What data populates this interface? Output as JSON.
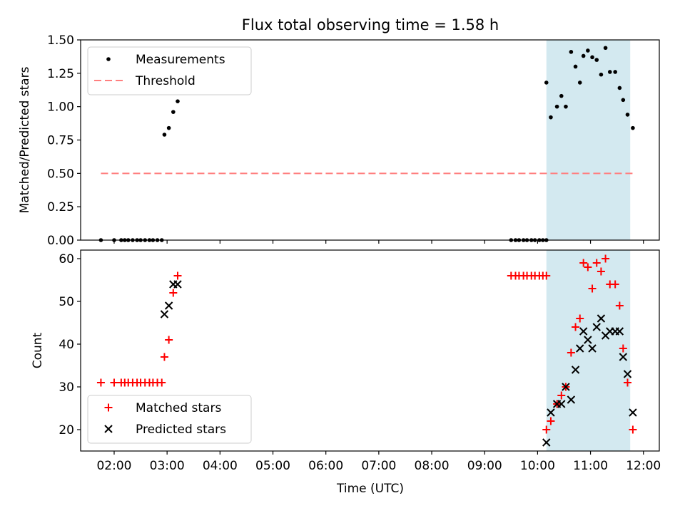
{
  "figure": {
    "title": "Flux total observing time = 1.58 h",
    "xlabel": "Time (UTC)"
  },
  "chart_data": [
    {
      "type": "scatter",
      "ylabel": "Matched/Predicted stars",
      "ylim": [
        0,
        1.5
      ],
      "yticks": [
        "0.00",
        "0.25",
        "0.50",
        "0.75",
        "1.00",
        "1.25",
        "1.50"
      ],
      "xlim": [
        "01:22",
        "12:18"
      ],
      "xticks": [
        "02:00",
        "03:00",
        "04:00",
        "05:00",
        "06:00",
        "07:00",
        "08:00",
        "09:00",
        "10:00",
        "11:00",
        "12:00"
      ],
      "xtick_labels_shown": false,
      "shaded_interval": {
        "x": [
          "10:10",
          "11:45"
        ],
        "color": "#d3e9f0"
      },
      "legend_position": "upper left",
      "series": [
        {
          "name": "Measurements",
          "marker": "dot",
          "color": "#000000",
          "points": [
            [
              "01:45",
              0
            ],
            [
              "02:00",
              0
            ],
            [
              "02:08",
              0
            ],
            [
              "02:12",
              0
            ],
            [
              "02:16",
              0
            ],
            [
              "02:21",
              0
            ],
            [
              "02:26",
              0
            ],
            [
              "02:30",
              0
            ],
            [
              "02:35",
              0
            ],
            [
              "02:40",
              0
            ],
            [
              "02:44",
              0
            ],
            [
              "02:49",
              0
            ],
            [
              "02:54",
              0
            ],
            [
              "02:57",
              0.79
            ],
            [
              "03:02",
              0.84
            ],
            [
              "03:07",
              0.96
            ],
            [
              "03:12",
              1.04
            ],
            [
              "09:30",
              0
            ],
            [
              "09:35",
              0
            ],
            [
              "09:39",
              0
            ],
            [
              "09:44",
              0
            ],
            [
              "09:48",
              0
            ],
            [
              "09:53",
              0
            ],
            [
              "09:57",
              0
            ],
            [
              "10:02",
              0
            ],
            [
              "10:06",
              0
            ],
            [
              "10:10",
              0
            ],
            [
              "10:10",
              1.18
            ],
            [
              "10:15",
              0.92
            ],
            [
              "10:22",
              1.0
            ],
            [
              "10:27",
              1.08
            ],
            [
              "10:32",
              1.0
            ],
            [
              "10:38",
              1.41
            ],
            [
              "10:43",
              1.3
            ],
            [
              "10:48",
              1.18
            ],
            [
              "10:52",
              1.38
            ],
            [
              "10:57",
              1.42
            ],
            [
              "11:02",
              1.37
            ],
            [
              "11:07",
              1.35
            ],
            [
              "11:12",
              1.24
            ],
            [
              "11:17",
              1.44
            ],
            [
              "11:22",
              1.26
            ],
            [
              "11:28",
              1.26
            ],
            [
              "11:33",
              1.14
            ],
            [
              "11:37",
              1.05
            ],
            [
              "11:42",
              0.94
            ],
            [
              "11:48",
              0.84
            ]
          ]
        },
        {
          "name": "Threshold",
          "type": "line",
          "style": "dashed",
          "color": "#ff7f7f",
          "points": [
            [
              "01:45",
              0.5
            ],
            [
              "11:48",
              0.5
            ]
          ]
        }
      ]
    },
    {
      "type": "scatter",
      "ylabel": "Count",
      "ylim": [
        15,
        62
      ],
      "yticks": [
        "20",
        "30",
        "40",
        "50",
        "60"
      ],
      "xlim": [
        "01:22",
        "12:18"
      ],
      "xticks": [
        "02:00",
        "03:00",
        "04:00",
        "05:00",
        "06:00",
        "07:00",
        "08:00",
        "09:00",
        "10:00",
        "11:00",
        "12:00"
      ],
      "shaded_interval": {
        "x": [
          "10:10",
          "11:45"
        ],
        "color": "#d3e9f0"
      },
      "legend_position": "lower left",
      "series": [
        {
          "name": "Matched stars",
          "marker": "plus",
          "color": "#ff0000",
          "points": [
            [
              "01:45",
              31
            ],
            [
              "02:00",
              31
            ],
            [
              "02:08",
              31
            ],
            [
              "02:12",
              31
            ],
            [
              "02:16",
              31
            ],
            [
              "02:21",
              31
            ],
            [
              "02:26",
              31
            ],
            [
              "02:30",
              31
            ],
            [
              "02:35",
              31
            ],
            [
              "02:40",
              31
            ],
            [
              "02:44",
              31
            ],
            [
              "02:49",
              31
            ],
            [
              "02:54",
              31
            ],
            [
              "02:57",
              37
            ],
            [
              "03:02",
              41
            ],
            [
              "03:07",
              52
            ],
            [
              "03:12",
              56
            ],
            [
              "09:30",
              56
            ],
            [
              "09:35",
              56
            ],
            [
              "09:39",
              56
            ],
            [
              "09:44",
              56
            ],
            [
              "09:48",
              56
            ],
            [
              "09:53",
              56
            ],
            [
              "09:57",
              56
            ],
            [
              "10:02",
              56
            ],
            [
              "10:06",
              56
            ],
            [
              "10:10",
              56
            ],
            [
              "10:10",
              20
            ],
            [
              "10:15",
              22
            ],
            [
              "10:22",
              26
            ],
            [
              "10:27",
              28
            ],
            [
              "10:32",
              30
            ],
            [
              "10:38",
              38
            ],
            [
              "10:43",
              44
            ],
            [
              "10:48",
              46
            ],
            [
              "10:52",
              59
            ],
            [
              "10:57",
              58
            ],
            [
              "11:02",
              53
            ],
            [
              "11:07",
              59
            ],
            [
              "11:12",
              57
            ],
            [
              "11:17",
              60
            ],
            [
              "11:22",
              54
            ],
            [
              "11:28",
              54
            ],
            [
              "11:33",
              49
            ],
            [
              "11:37",
              39
            ],
            [
              "11:42",
              31
            ],
            [
              "11:48",
              20
            ]
          ]
        },
        {
          "name": "Predicted stars",
          "marker": "x",
          "color": "#000000",
          "points": [
            [
              "02:57",
              47
            ],
            [
              "03:02",
              49
            ],
            [
              "03:07",
              54
            ],
            [
              "03:12",
              54
            ],
            [
              "10:10",
              17
            ],
            [
              "10:15",
              24
            ],
            [
              "10:22",
              26
            ],
            [
              "10:27",
              26
            ],
            [
              "10:32",
              30
            ],
            [
              "10:38",
              27
            ],
            [
              "10:43",
              34
            ],
            [
              "10:48",
              39
            ],
            [
              "10:52",
              43
            ],
            [
              "10:57",
              41
            ],
            [
              "11:02",
              39
            ],
            [
              "11:07",
              44
            ],
            [
              "11:12",
              46
            ],
            [
              "11:17",
              42
            ],
            [
              "11:22",
              43
            ],
            [
              "11:28",
              43
            ],
            [
              "11:33",
              43
            ],
            [
              "11:37",
              37
            ],
            [
              "11:42",
              33
            ],
            [
              "11:48",
              24
            ]
          ]
        }
      ]
    }
  ]
}
